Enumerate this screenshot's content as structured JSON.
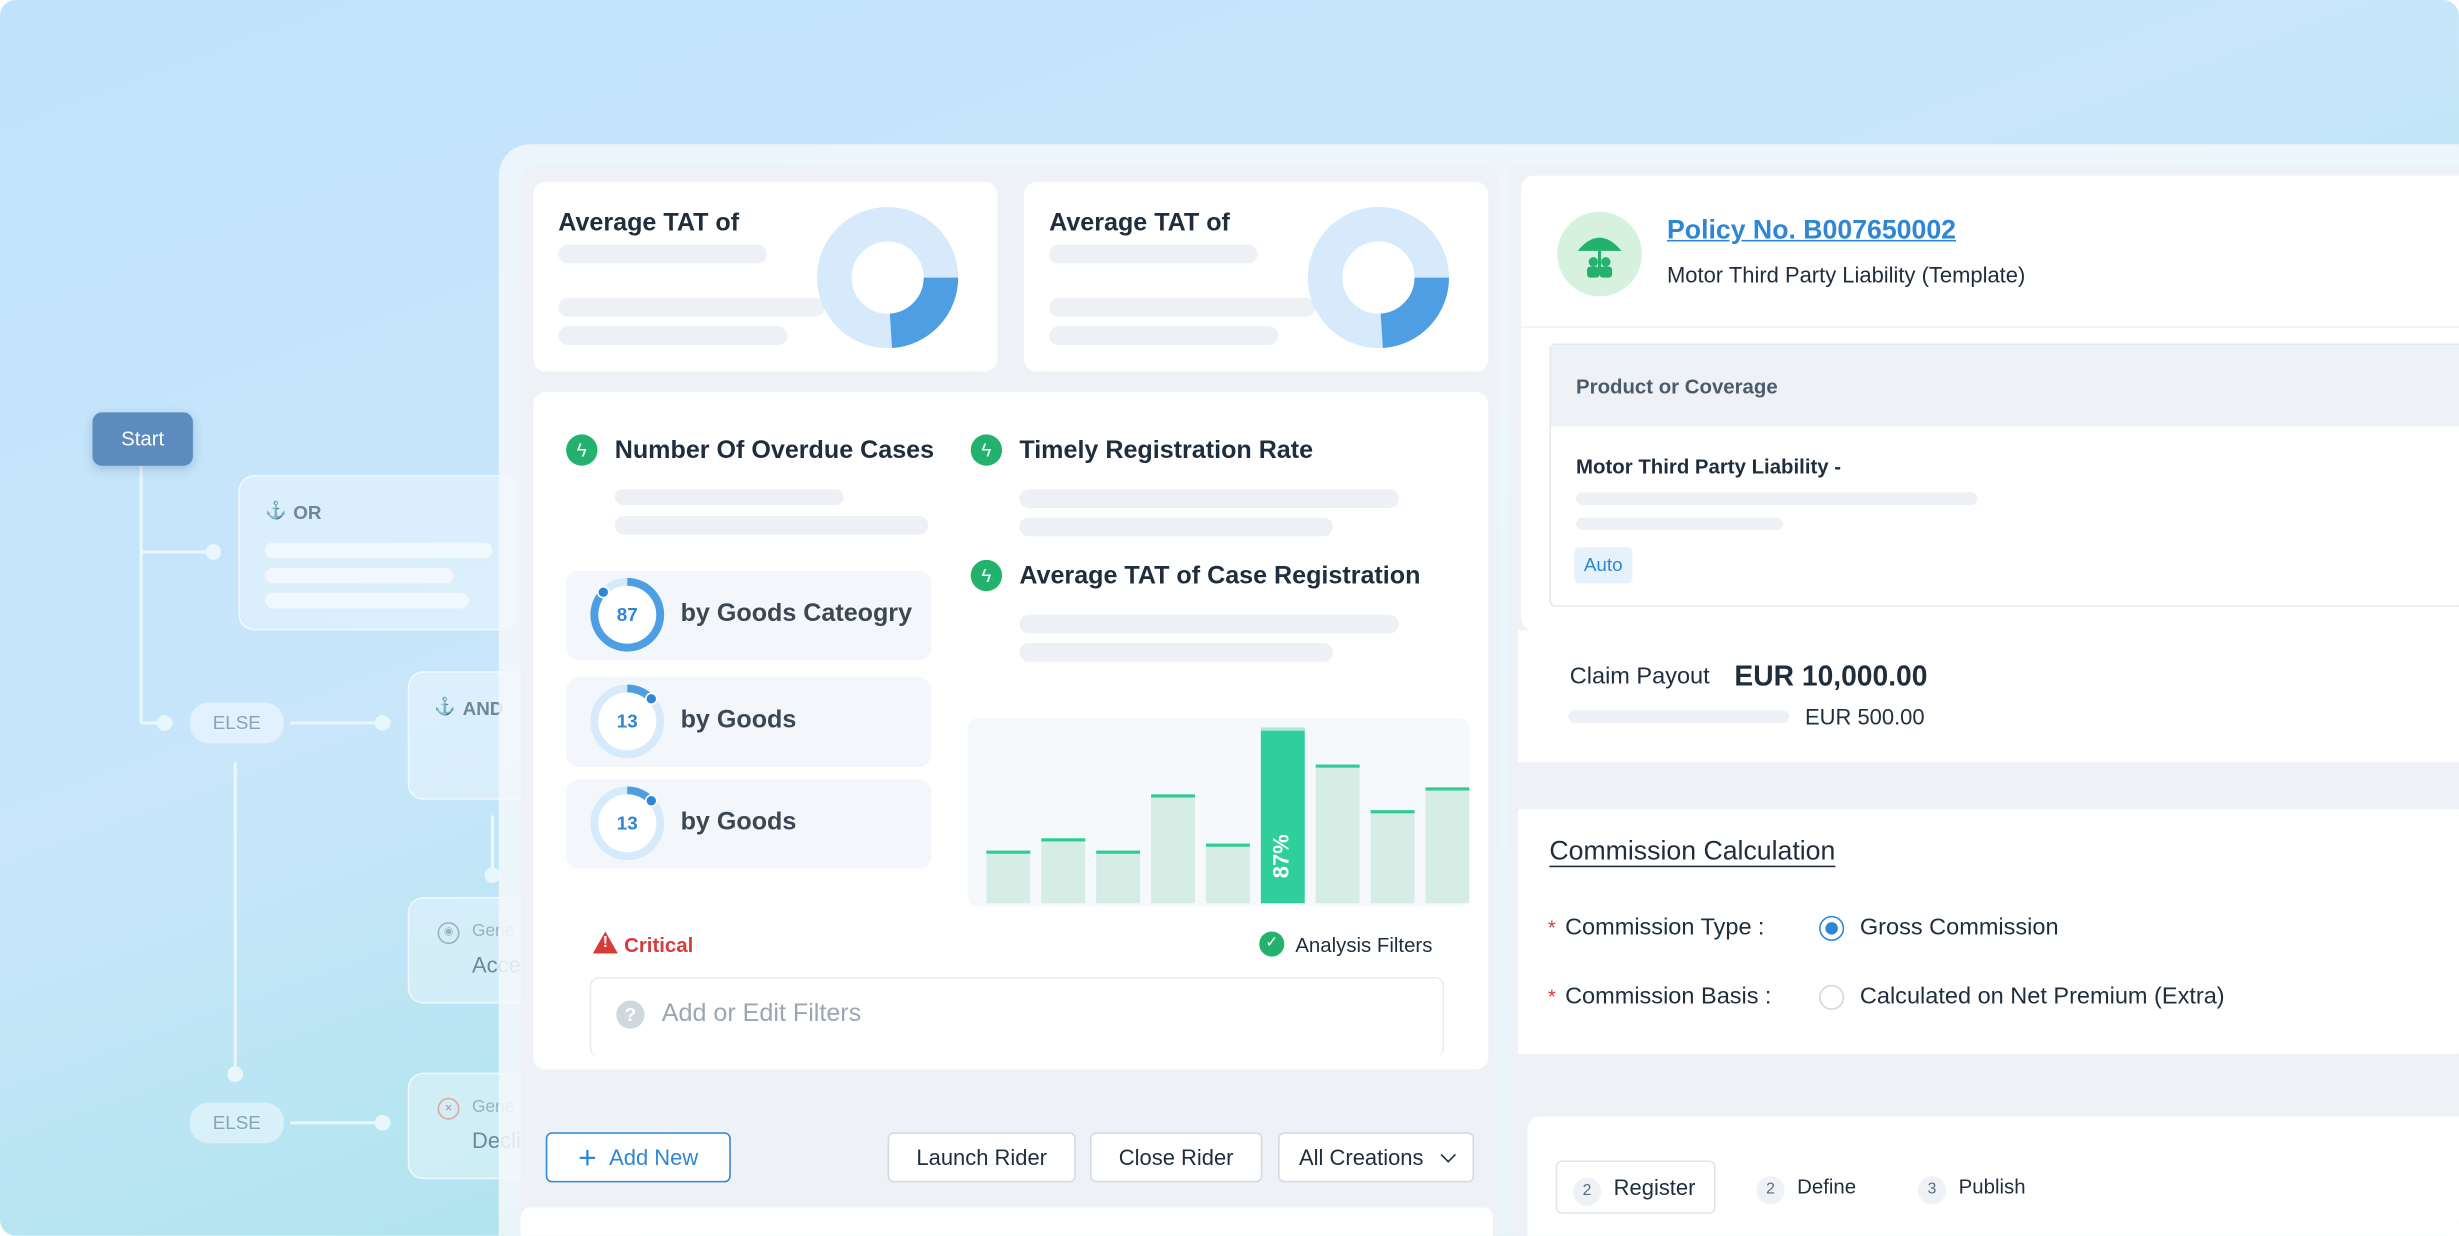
{
  "flow": {
    "start_label": "Start",
    "or_label": "OR",
    "else_label_1": "ELSE",
    "and_label": "AND",
    "gen_label_1": "Gene",
    "acc_label": "Acce",
    "else_label_2": "ELSE",
    "gen_label_2": "Gene",
    "dec_label": "Decli"
  },
  "stats": {
    "tat_title_1": "Average TAT of",
    "tat_title_2": "Average TAT of",
    "donut_fraction": 0.24,
    "overdue_title": "Number Of Overdue Cases",
    "timely_title": "Timely Registration Rate",
    "avg_reg_title": "Average TAT of Case Registration",
    "chips": [
      {
        "value": "87",
        "label": "by Goods Cateogry",
        "fraction": 0.87
      },
      {
        "value": "13",
        "label": "by Goods",
        "fraction": 0.13
      },
      {
        "value": "13",
        "label": "by Goods",
        "fraction": 0.13
      }
    ],
    "critical_label": "Critical",
    "analysis_label": "Analysis Filters",
    "filter_placeholder": "Add or Edit Filters",
    "help_glyph": "?",
    "warning_glyph": "!",
    "check_glyph": "✓",
    "bolt_glyph": "ϟ"
  },
  "chart_data": {
    "type": "bar",
    "values": [
      30,
      37,
      30,
      62,
      34,
      100,
      79,
      53,
      66
    ],
    "highlight_index": 5,
    "highlight_label": "87%",
    "colors": {
      "bar": "#d5ede4",
      "cap": "#2ecc94",
      "highlight": "#2ecf9a"
    }
  },
  "toolbar": {
    "add_new": "Add New",
    "plus_glyph": "+",
    "launch_rider": "Launch Rider",
    "close_rider": "Close Rider",
    "all_creations": "All Creations",
    "chevron_glyph": "⌄"
  },
  "policy": {
    "number": "Policy No. B007650002",
    "subtitle": "Motor Third Party Liability (Template)",
    "coverage_header": "Product or Coverage",
    "coverage_name": "Motor Third Party Liability -",
    "auto_tag": "Auto",
    "claim_label": "Claim Payout",
    "claim_amount": "EUR 10,000.00",
    "sub_amount": "EUR 500.00"
  },
  "commission": {
    "title": "Commission Calculation",
    "required_mark": "*",
    "type_label": "Commission Type",
    "type_value": "Gross Commission",
    "basis_label": "Commission Basis",
    "basis_value": "Calculated on Net Premium (Extra)",
    "colon": ":"
  },
  "steps": [
    {
      "num": "2",
      "label": "Register"
    },
    {
      "num": "2",
      "label": "Define"
    },
    {
      "num": "3",
      "label": "Publish"
    }
  ]
}
